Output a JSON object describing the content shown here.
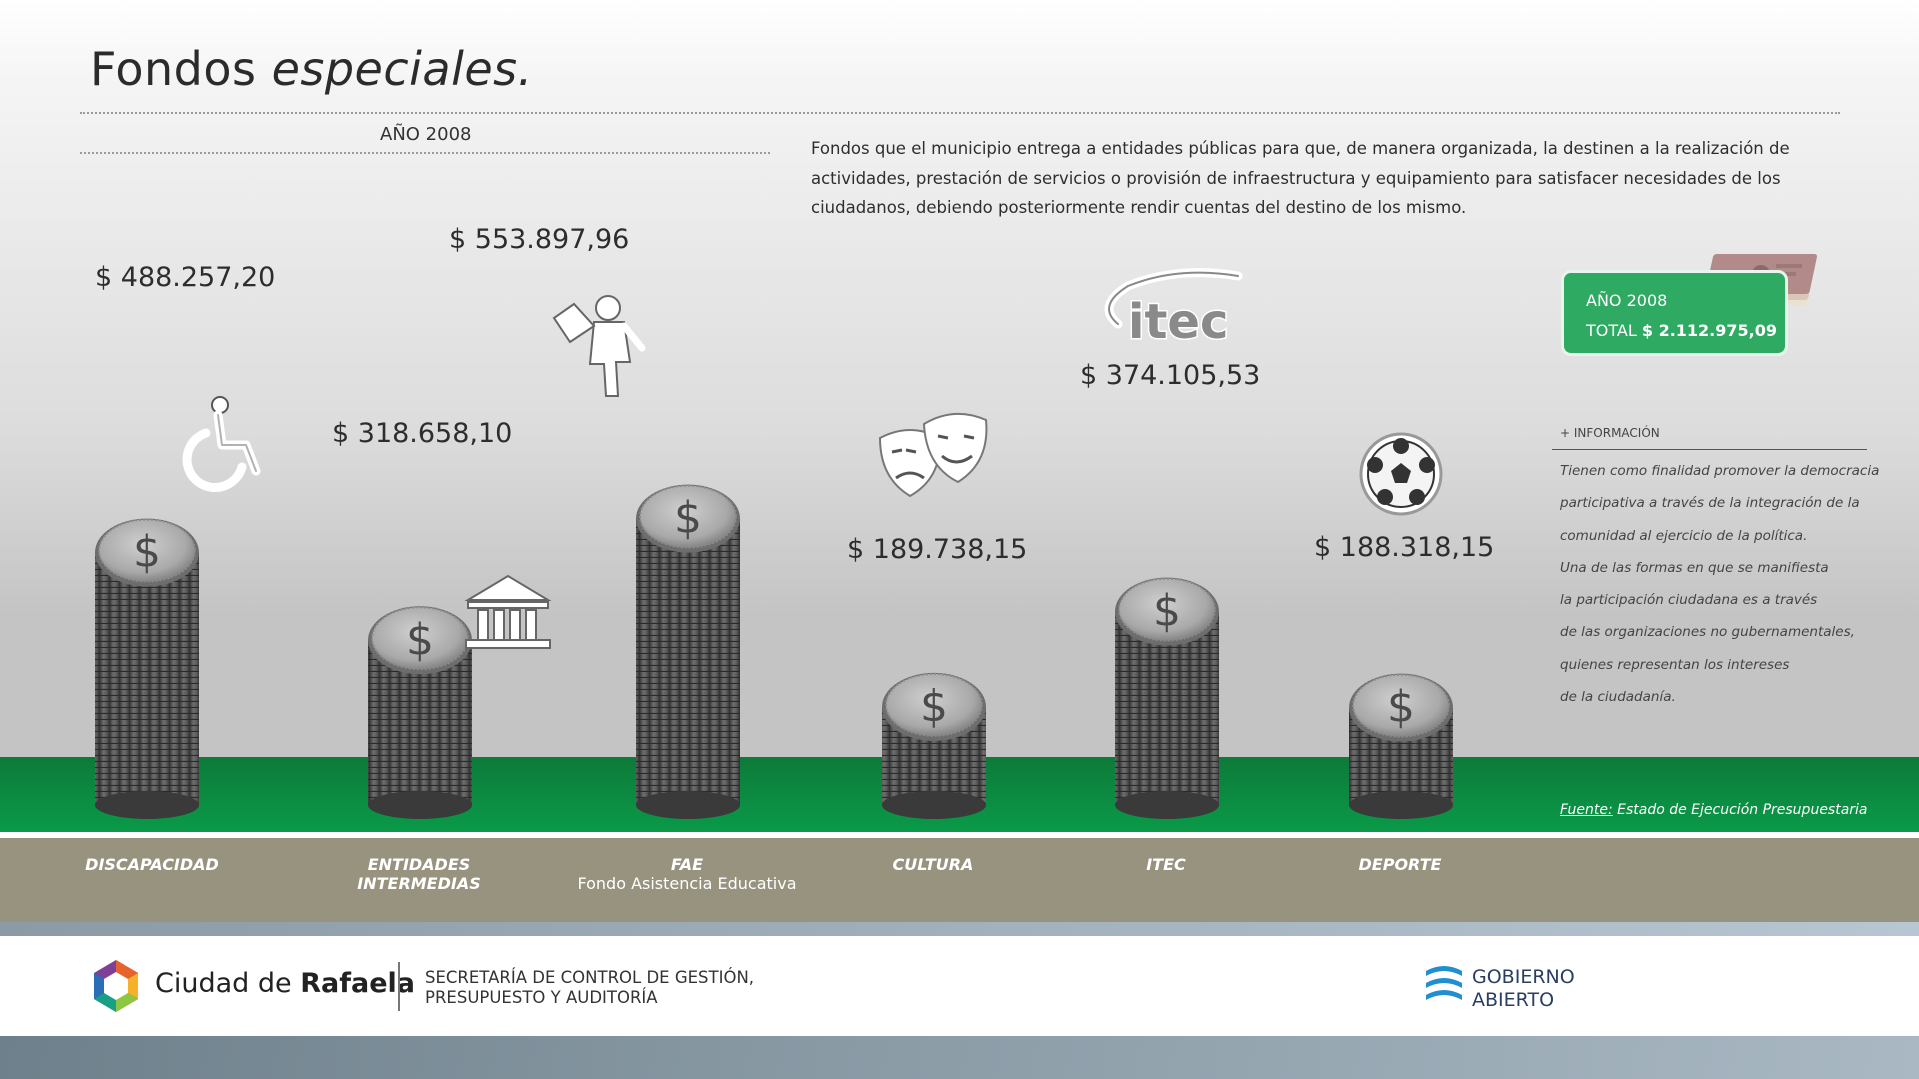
{
  "header": {
    "title_plain": "Fondos ",
    "title_italic": "especiales.",
    "year_label": "AÑO 2008",
    "description": "Fondos que el municipio entrega a entidades públicas para que, de manera organizada, la destinen a la realización de actividades, prestación de servicios o provisión de infraestructura y equipamiento para satisfacer necesidades de los ciudadanos, debiendo posteriormente rendir cuentas del destino de los mismo."
  },
  "total_box": {
    "year": "AÑO 2008",
    "total_label": "TOTAL",
    "total_value": "$ 2.112.975,09"
  },
  "info": {
    "heading": "+ INFORMACIÓN",
    "lines": [
      "Tienen como finalidad promover la democracia",
      "participativa a través de la integración de la",
      "comunidad al ejercicio de la política.",
      "Una de las formas en que se manifiesta",
      "la participación ciudadana es a través",
      "de las organizaciones no gubernamentales,",
      "quienes representan los intereses",
      "de la ciudadanía."
    ]
  },
  "source": {
    "label": "Fuente:",
    "text": " Estado de Ejecución Presupuestaria"
  },
  "chart_data": {
    "type": "bar",
    "categories": [
      "DISCAPACIDAD",
      "ENTIDADES INTERMEDIAS",
      "FAE",
      "CULTURA",
      "ITEC",
      "DEPORTE"
    ],
    "category_lines": [
      [
        "DISCAPACIDAD"
      ],
      [
        "ENTIDADES",
        "INTERMEDIAS"
      ],
      [
        "FAE"
      ],
      [
        "CULTURA"
      ],
      [
        "ITEC"
      ],
      [
        "DEPORTE"
      ]
    ],
    "category_subtitles": [
      "",
      "",
      "Fondo Asistencia Educativa",
      "",
      "",
      ""
    ],
    "values": [
      488257.2,
      318658.1,
      553897.96,
      189738.15,
      374105.53,
      188318.15
    ],
    "value_labels": [
      "$ 488.257,20",
      "$ 318.658,10",
      "$ 553.897,96",
      "$ 189.738,15",
      "$ 374.105,53",
      "$ 188.318,15"
    ],
    "icons": [
      "wheelchair-icon",
      "institution-icon",
      "student-icon",
      "theater-masks-icon",
      "itec-logo",
      "soccer-ball-icon"
    ],
    "coin_symbol": "$",
    "title": "",
    "xlabel": "",
    "ylabel": "",
    "colors": {
      "coin": "#5a5a5a",
      "ground": "#0a8f43",
      "total_box": "#2eaa62"
    }
  },
  "itec_logo_text": "itec",
  "footer": {
    "city_plain": "Ciudad de ",
    "city_bold": "Rafaela",
    "secretaria_line1": "SECRETARÍA DE CONTROL DE GESTIÓN,",
    "secretaria_line2": "PRESUPUESTO Y AUDITORÍA",
    "gob_line1": "GOBIERNO",
    "gob_line2": "ABIERTO"
  }
}
